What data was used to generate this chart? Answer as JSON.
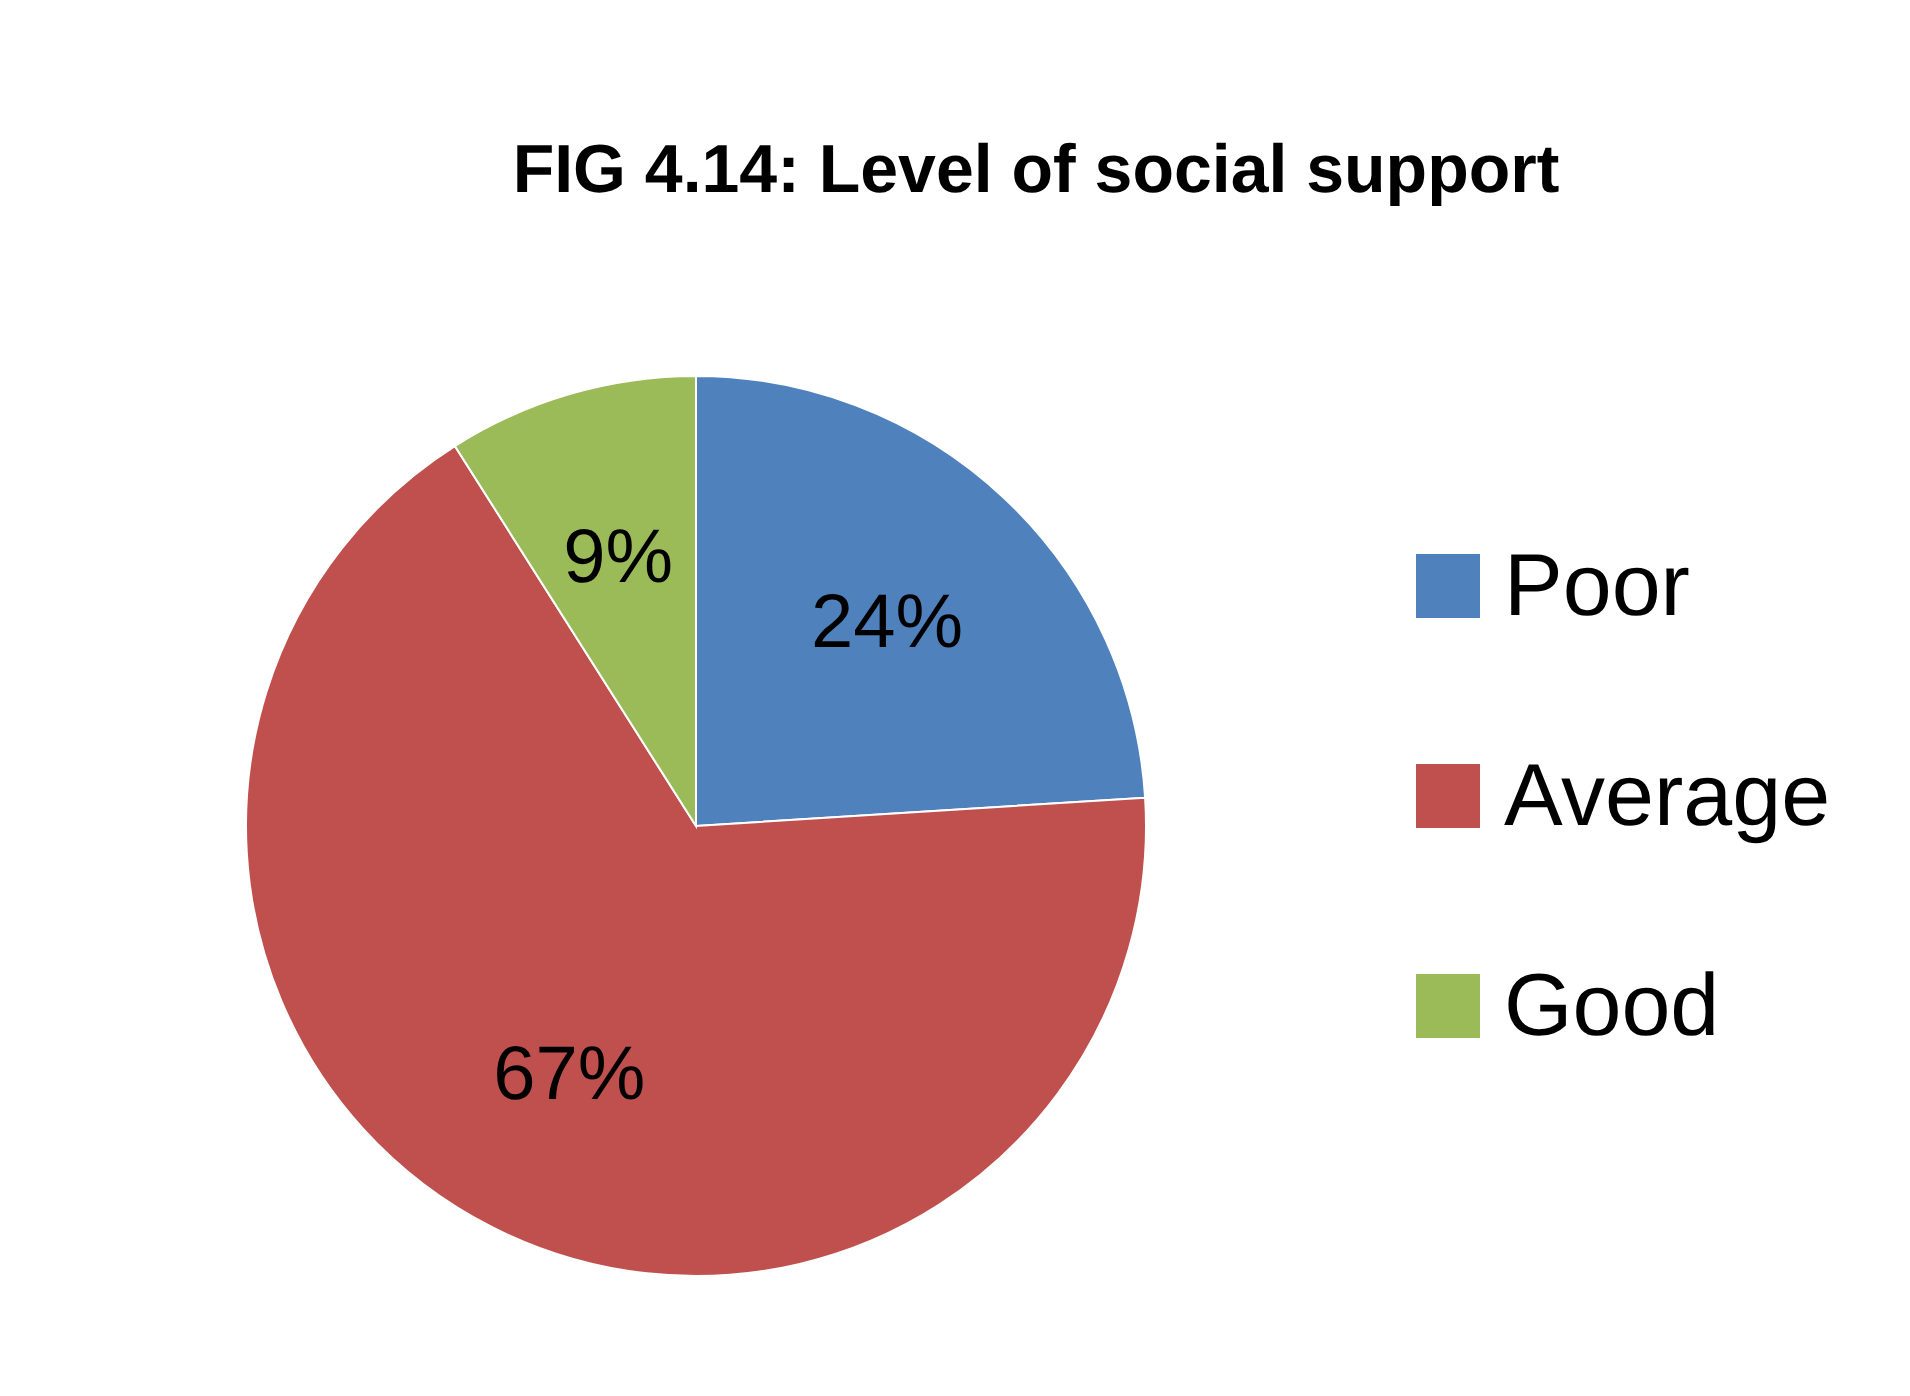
{
  "chart_data": {
    "type": "pie",
    "title": "FIG 4.14: Level of social support",
    "categories": [
      "Poor",
      "Average",
      "Good"
    ],
    "values": [
      24,
      67,
      9
    ],
    "colors": [
      "#4f81bd",
      "#c0504d",
      "#9bbb59"
    ],
    "value_labels": [
      "24%",
      "67%",
      "9%"
    ],
    "legend": "right"
  }
}
